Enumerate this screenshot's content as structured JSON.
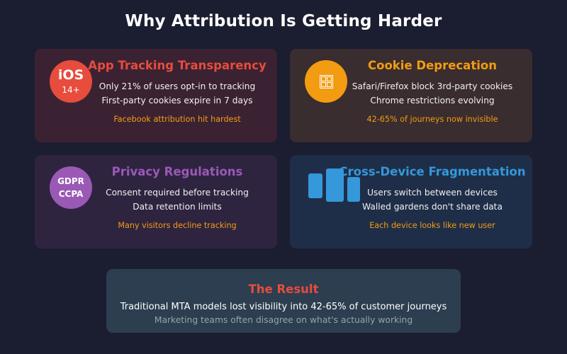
{
  "title": "Why Attribution Is Getting Harder",
  "colors": {
    "background": "#1b1d30",
    "att_accent": "#e74c3c",
    "cookie_accent": "#f39c12",
    "privacy_accent": "#9b59b6",
    "device_accent": "#3498db",
    "note": "#f39c12"
  },
  "cards": {
    "att": {
      "icon_name": "ios-badge-icon",
      "icon_line1": "iOS",
      "icon_line2": "14+",
      "heading": "App Tracking Transparency",
      "line1": "Only 21% of users opt-in to tracking",
      "line2": "First-party cookies expire in 7 days",
      "note": "Facebook attribution hit hardest"
    },
    "cookie": {
      "icon_name": "cookie-icon",
      "heading": "Cookie Deprecation",
      "line1": "Safari/Firefox block 3rd-party cookies",
      "line2": "Chrome restrictions evolving",
      "note": "42-65% of journeys now invisible"
    },
    "privacy": {
      "icon_name": "gdpr-ccpa-badge-icon",
      "icon_line1": "GDPR",
      "icon_line2": "CCPA",
      "heading": "Privacy Regulations",
      "line1": "Consent required before tracking",
      "line2": "Data retention limits",
      "note": "Many visitors decline tracking"
    },
    "device": {
      "icon_name": "devices-icon",
      "heading": "Cross-Device Fragmentation",
      "line1": "Users switch between devices",
      "line2": "Walled gardens don't share data",
      "note": "Each device looks like new user"
    }
  },
  "result": {
    "heading": "The Result",
    "line1": "Traditional MTA models lost visibility into 42-65% of customer journeys",
    "line2": "Marketing teams often disagree on what's actually working"
  }
}
